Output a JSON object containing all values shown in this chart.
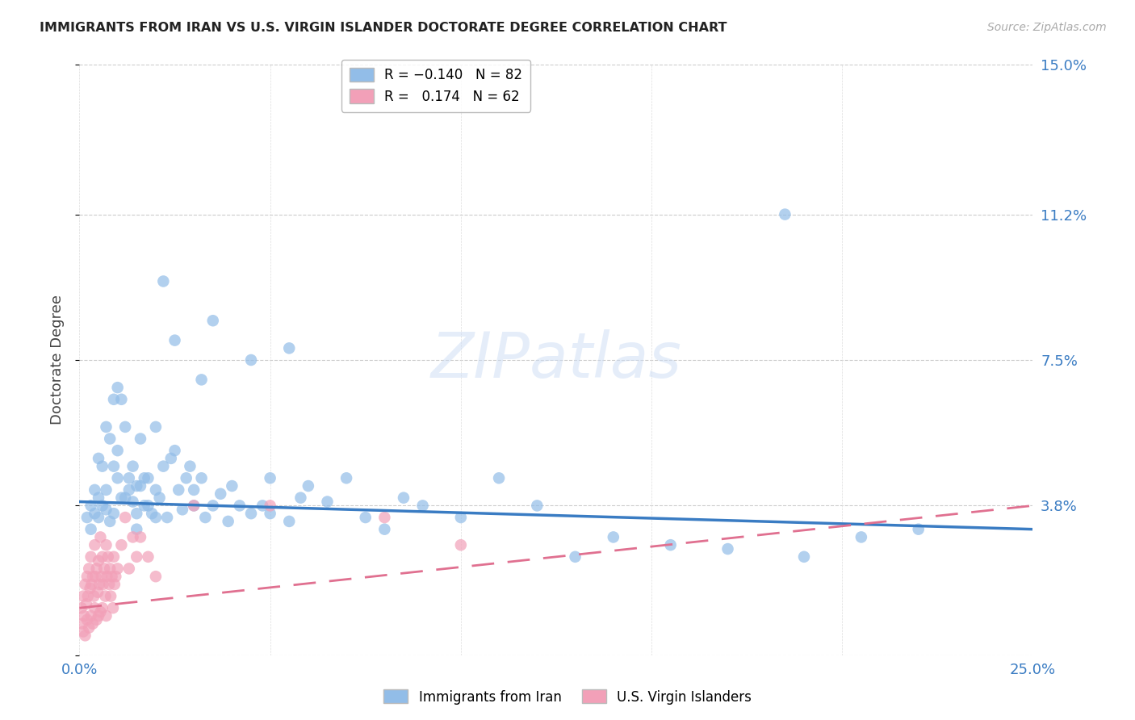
{
  "title": "IMMIGRANTS FROM IRAN VS U.S. VIRGIN ISLANDER DOCTORATE DEGREE CORRELATION CHART",
  "source": "Source: ZipAtlas.com",
  "ylabel": "Doctorate Degree",
  "ytick_vals": [
    0.0,
    3.8,
    7.5,
    11.2,
    15.0
  ],
  "ytick_labels": [
    "",
    "3.8%",
    "7.5%",
    "11.2%",
    "15.0%"
  ],
  "xtick_vals": [
    0.0,
    5.0,
    10.0,
    15.0,
    20.0,
    25.0
  ],
  "xtick_labels": [
    "0.0%",
    "",
    "",
    "",
    "",
    "25.0%"
  ],
  "xlim": [
    0.0,
    25.0
  ],
  "ylim": [
    0.0,
    15.0
  ],
  "blue_color": "#92BDE8",
  "pink_color": "#F2A0B8",
  "blue_line_color": "#3A7CC3",
  "pink_line_color": "#E07090",
  "blue_scatter": [
    [
      0.2,
      3.5
    ],
    [
      0.3,
      3.2
    ],
    [
      0.3,
      3.8
    ],
    [
      0.4,
      3.6
    ],
    [
      0.4,
      4.2
    ],
    [
      0.5,
      4.0
    ],
    [
      0.5,
      3.5
    ],
    [
      0.5,
      5.0
    ],
    [
      0.6,
      4.8
    ],
    [
      0.6,
      3.8
    ],
    [
      0.7,
      4.2
    ],
    [
      0.7,
      3.7
    ],
    [
      0.7,
      5.8
    ],
    [
      0.8,
      5.5
    ],
    [
      0.8,
      3.4
    ],
    [
      0.9,
      4.8
    ],
    [
      0.9,
      3.6
    ],
    [
      0.9,
      6.5
    ],
    [
      1.0,
      5.2
    ],
    [
      1.0,
      4.5
    ],
    [
      1.0,
      6.8
    ],
    [
      1.1,
      6.5
    ],
    [
      1.1,
      4.0
    ],
    [
      1.2,
      5.8
    ],
    [
      1.2,
      4.0
    ],
    [
      1.3,
      4.5
    ],
    [
      1.3,
      4.2
    ],
    [
      1.4,
      4.8
    ],
    [
      1.4,
      3.9
    ],
    [
      1.5,
      3.6
    ],
    [
      1.5,
      3.2
    ],
    [
      1.5,
      4.3
    ],
    [
      1.6,
      4.3
    ],
    [
      1.6,
      5.5
    ],
    [
      1.7,
      3.8
    ],
    [
      1.7,
      4.5
    ],
    [
      1.8,
      4.5
    ],
    [
      1.8,
      3.8
    ],
    [
      1.9,
      3.6
    ],
    [
      2.0,
      5.8
    ],
    [
      2.0,
      4.2
    ],
    [
      2.0,
      3.5
    ],
    [
      2.1,
      4.0
    ],
    [
      2.2,
      4.8
    ],
    [
      2.2,
      9.5
    ],
    [
      2.3,
      3.5
    ],
    [
      2.4,
      5.0
    ],
    [
      2.5,
      5.2
    ],
    [
      2.5,
      8.0
    ],
    [
      2.6,
      4.2
    ],
    [
      2.7,
      3.7
    ],
    [
      2.8,
      4.5
    ],
    [
      2.9,
      4.8
    ],
    [
      3.0,
      4.2
    ],
    [
      3.0,
      3.8
    ],
    [
      3.2,
      4.5
    ],
    [
      3.2,
      7.0
    ],
    [
      3.3,
      3.5
    ],
    [
      3.5,
      3.8
    ],
    [
      3.5,
      8.5
    ],
    [
      3.7,
      4.1
    ],
    [
      3.9,
      3.4
    ],
    [
      4.0,
      4.3
    ],
    [
      4.2,
      3.8
    ],
    [
      4.5,
      7.5
    ],
    [
      4.5,
      3.6
    ],
    [
      4.8,
      3.8
    ],
    [
      5.0,
      4.5
    ],
    [
      5.0,
      3.6
    ],
    [
      5.5,
      7.8
    ],
    [
      5.5,
      3.4
    ],
    [
      5.8,
      4.0
    ],
    [
      6.0,
      4.3
    ],
    [
      6.5,
      3.9
    ],
    [
      7.0,
      4.5
    ],
    [
      7.5,
      3.5
    ],
    [
      8.0,
      3.2
    ],
    [
      8.5,
      4.0
    ],
    [
      9.0,
      3.8
    ],
    [
      10.0,
      3.5
    ],
    [
      11.0,
      4.5
    ],
    [
      12.0,
      3.8
    ],
    [
      13.0,
      2.5
    ],
    [
      14.0,
      3.0
    ],
    [
      15.5,
      2.8
    ],
    [
      17.0,
      2.7
    ],
    [
      18.5,
      11.2
    ],
    [
      19.0,
      2.5
    ],
    [
      20.5,
      3.0
    ],
    [
      22.0,
      3.2
    ]
  ],
  "pink_scatter": [
    [
      0.05,
      1.2
    ],
    [
      0.08,
      0.8
    ],
    [
      0.1,
      1.5
    ],
    [
      0.1,
      0.6
    ],
    [
      0.12,
      1.0
    ],
    [
      0.15,
      1.8
    ],
    [
      0.15,
      0.5
    ],
    [
      0.18,
      1.3
    ],
    [
      0.2,
      2.0
    ],
    [
      0.2,
      0.9
    ],
    [
      0.22,
      1.5
    ],
    [
      0.25,
      2.2
    ],
    [
      0.25,
      0.7
    ],
    [
      0.28,
      1.7
    ],
    [
      0.3,
      2.5
    ],
    [
      0.3,
      1.0
    ],
    [
      0.32,
      1.8
    ],
    [
      0.35,
      2.0
    ],
    [
      0.35,
      0.8
    ],
    [
      0.38,
      1.5
    ],
    [
      0.4,
      2.8
    ],
    [
      0.4,
      1.2
    ],
    [
      0.42,
      2.0
    ],
    [
      0.45,
      2.2
    ],
    [
      0.45,
      0.9
    ],
    [
      0.48,
      1.6
    ],
    [
      0.5,
      2.4
    ],
    [
      0.5,
      1.0
    ],
    [
      0.52,
      1.8
    ],
    [
      0.55,
      3.0
    ],
    [
      0.55,
      1.1
    ],
    [
      0.58,
      2.0
    ],
    [
      0.6,
      2.5
    ],
    [
      0.6,
      1.2
    ],
    [
      0.62,
      1.8
    ],
    [
      0.65,
      2.2
    ],
    [
      0.68,
      1.5
    ],
    [
      0.7,
      2.8
    ],
    [
      0.7,
      1.0
    ],
    [
      0.72,
      2.0
    ],
    [
      0.75,
      2.5
    ],
    [
      0.78,
      1.8
    ],
    [
      0.8,
      2.2
    ],
    [
      0.82,
      1.5
    ],
    [
      0.85,
      2.0
    ],
    [
      0.88,
      1.2
    ],
    [
      0.9,
      2.5
    ],
    [
      0.92,
      1.8
    ],
    [
      0.95,
      2.0
    ],
    [
      1.0,
      2.2
    ],
    [
      1.1,
      2.8
    ],
    [
      1.2,
      3.5
    ],
    [
      1.3,
      2.2
    ],
    [
      1.4,
      3.0
    ],
    [
      1.5,
      2.5
    ],
    [
      1.6,
      3.0
    ],
    [
      1.8,
      2.5
    ],
    [
      2.0,
      2.0
    ],
    [
      3.0,
      3.8
    ],
    [
      5.0,
      3.8
    ],
    [
      8.0,
      3.5
    ],
    [
      10.0,
      2.8
    ]
  ],
  "blue_line_x": [
    0,
    25
  ],
  "blue_line_y": [
    3.9,
    3.2
  ],
  "pink_line_x": [
    0,
    25
  ],
  "pink_line_y": [
    1.2,
    3.8
  ]
}
